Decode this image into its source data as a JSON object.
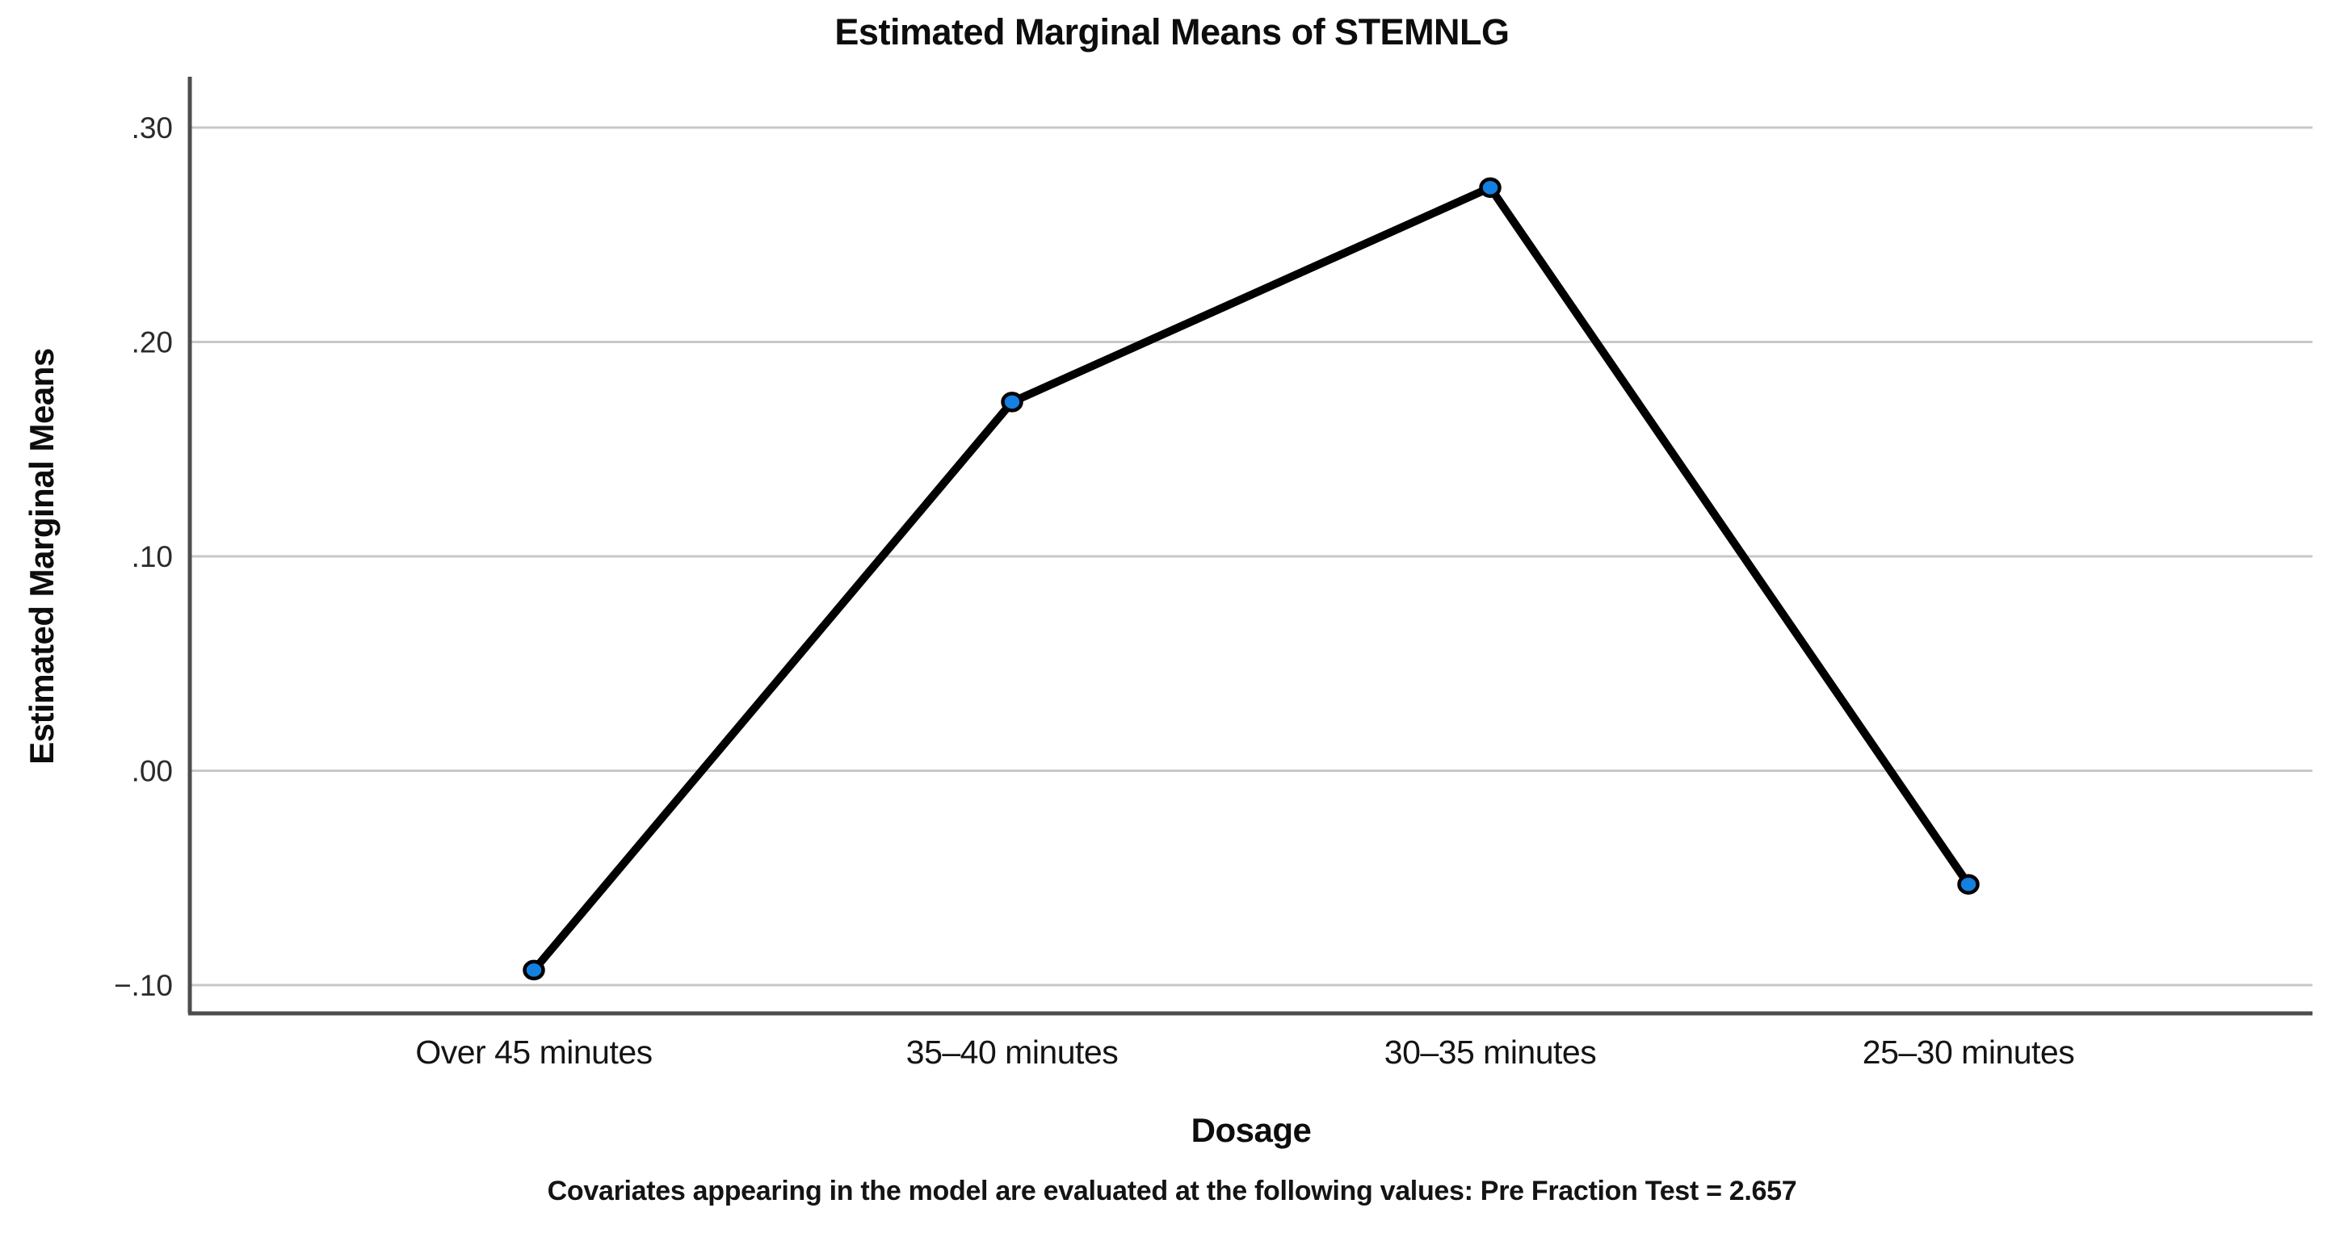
{
  "chart": {
    "title": "Estimated Marginal Means of STEMNLG",
    "y_axis_title": "Estimated Marginal Means",
    "x_axis_title": "Dosage",
    "footnote": "Covariates appearing in the model are evaluated at the following values: Pre Fraction Test = 2.657"
  },
  "chart_data": {
    "type": "line",
    "title": "Estimated Marginal Means of STEMNLG",
    "xlabel": "Dosage",
    "ylabel": "Estimated Marginal Means",
    "categories": [
      "Over 45 minutes",
      "35–40 minutes",
      "30–35 minutes",
      "25–30 minutes"
    ],
    "values": [
      -0.093,
      0.172,
      0.272,
      -0.053
    ],
    "y_ticks": [
      {
        "value": 0.3,
        "label": ".30"
      },
      {
        "value": 0.2,
        "label": ".20"
      },
      {
        "value": 0.1,
        "label": ".10"
      },
      {
        "value": 0.0,
        "label": ".00"
      },
      {
        "value": -0.1,
        "label": "−.10"
      }
    ],
    "ylim": [
      -0.113,
      0.324
    ],
    "grid": "horizontal-gridlines",
    "legend": "none",
    "footnote": "Covariates appearing in the model are evaluated at the following values: Pre Fraction Test = 2.657",
    "colors": {
      "marker_fill": "#1480df",
      "marker_outline": "#000000",
      "line": "#000000",
      "gridline": "#c8c8c8",
      "axis_line": "#4d4d4d",
      "tick_text": "#2b2b2b",
      "background": "#ffffff"
    }
  }
}
